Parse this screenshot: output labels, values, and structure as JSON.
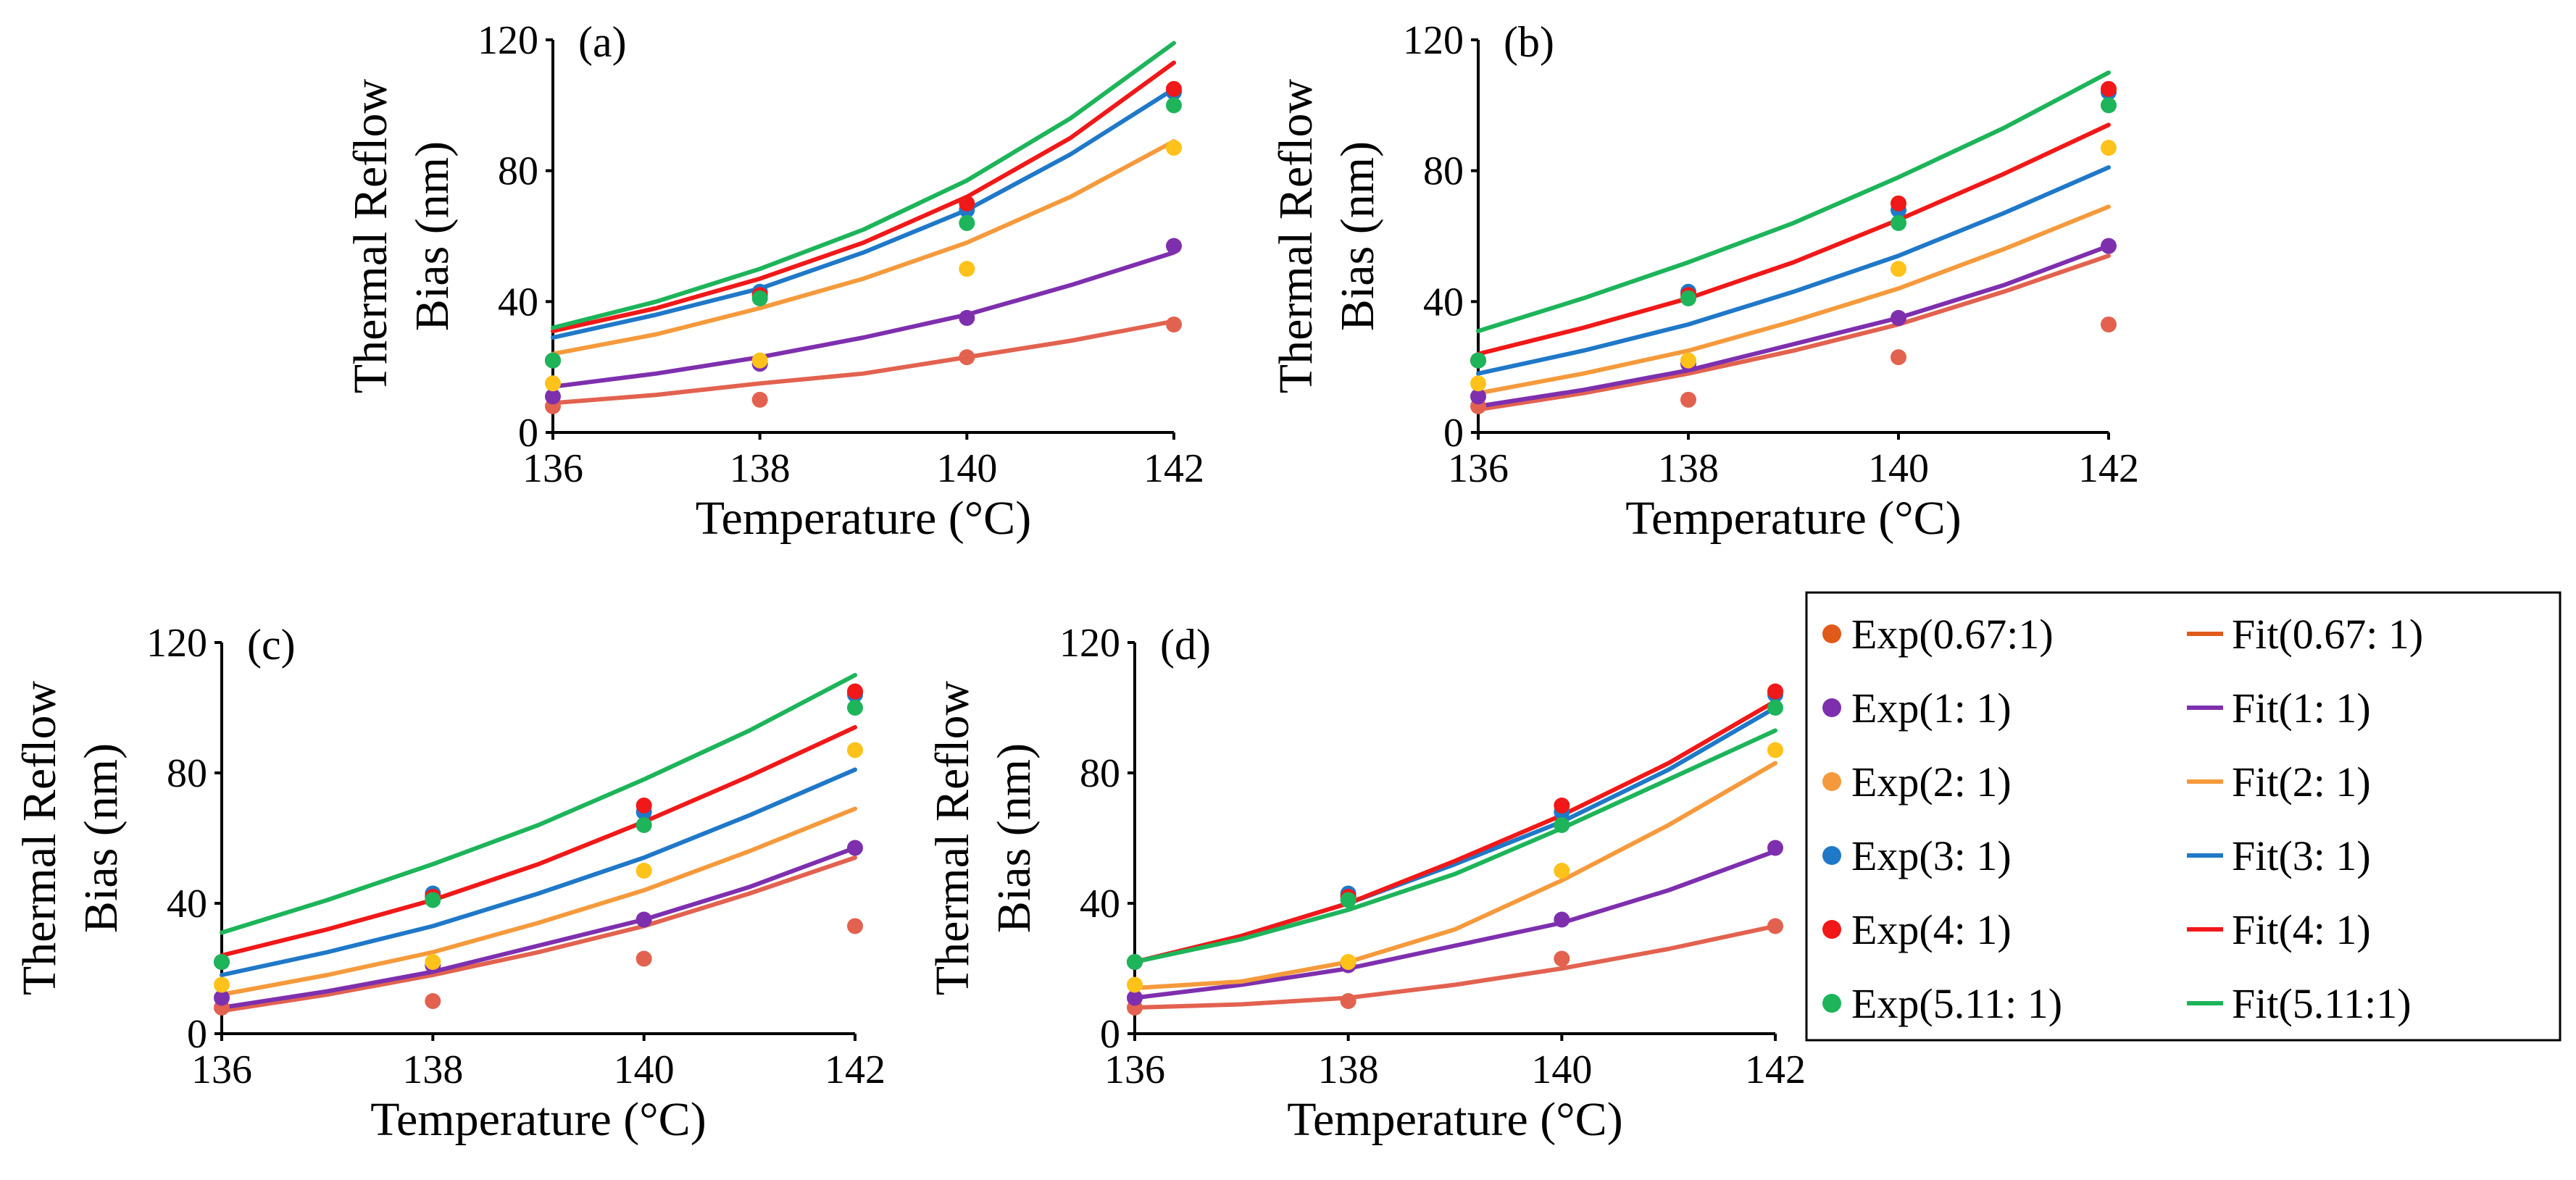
{
  "chart_data": [
    {
      "type": "scatter",
      "panel_label": "(a)",
      "xlabel": "Temperature (°C)",
      "ylabel": [
        "Thermal Reflow",
        "Bias (nm)"
      ],
      "xlim": [
        136,
        142
      ],
      "ylim": [
        0,
        120
      ],
      "xticks": [
        "136",
        "138",
        "140",
        "142"
      ],
      "yticks": [
        "0",
        "40",
        "80",
        "120"
      ],
      "exp_x": [
        136,
        138,
        140,
        142
      ],
      "fit_x": [
        136,
        137,
        138,
        139,
        140,
        141,
        142
      ],
      "series": [
        {
          "name": "Exp(0.67:1)",
          "fit_name": "Fit(0.67: 1)",
          "exp": [
            8,
            10,
            23,
            33
          ],
          "fit": [
            9,
            11.5,
            15,
            18,
            23,
            28,
            34
          ]
        },
        {
          "name": "Exp(1: 1)",
          "fit_name": "Fit(1: 1)",
          "exp": [
            11,
            21,
            35,
            57
          ],
          "fit": [
            14,
            18,
            23,
            29,
            36,
            45,
            55
          ]
        },
        {
          "name": "Exp(2: 1)",
          "fit_name": "Fit(2: 1)",
          "exp": [
            15,
            22,
            50,
            87
          ],
          "fit": [
            24,
            30,
            38,
            47,
            58,
            72,
            89
          ]
        },
        {
          "name": "Exp(3: 1)",
          "fit_name": "Fit(3: 1)",
          "exp": [
            22,
            43,
            68,
            104
          ],
          "fit": [
            29,
            36,
            44,
            55,
            68,
            85,
            105
          ]
        },
        {
          "name": "Exp(4: 1)",
          "fit_name": "Fit(4: 1)",
          "exp": [
            22,
            42,
            70,
            105
          ],
          "fit": [
            31,
            38,
            47,
            58,
            72,
            90,
            113
          ]
        },
        {
          "name": "Exp(5.11: 1)",
          "fit_name": "Fit(5.11:1)",
          "exp": [
            22,
            41,
            64,
            100
          ],
          "fit": [
            32,
            40,
            50,
            62,
            77,
            96,
            119
          ]
        }
      ]
    },
    {
      "type": "scatter",
      "panel_label": "(b)",
      "xlabel": "Temperature (°C)",
      "ylabel": [
        "Thermal Reflow",
        "Bias (nm)"
      ],
      "xlim": [
        136,
        142
      ],
      "ylim": [
        0,
        120
      ],
      "xticks": [
        "136",
        "138",
        "140",
        "142"
      ],
      "yticks": [
        "0",
        "40",
        "80",
        "120"
      ],
      "exp_x": [
        136,
        138,
        140,
        142
      ],
      "fit_x": [
        136,
        137,
        138,
        139,
        140,
        141,
        142
      ],
      "series": [
        {
          "name": "Exp(0.67:1)",
          "fit_name": "Fit(0.67: 1)",
          "exp": [
            8,
            10,
            23,
            33
          ],
          "fit": [
            7,
            12,
            18,
            25,
            33,
            43,
            54
          ]
        },
        {
          "name": "Exp(1: 1)",
          "fit_name": "Fit(1: 1)",
          "exp": [
            11,
            21,
            35,
            57
          ],
          "fit": [
            8,
            13,
            19,
            27,
            35,
            45,
            57
          ]
        },
        {
          "name": "Exp(2: 1)",
          "fit_name": "Fit(2: 1)",
          "exp": [
            15,
            22,
            50,
            87
          ],
          "fit": [
            12,
            18,
            25,
            34,
            44,
            56,
            69
          ]
        },
        {
          "name": "Exp(3: 1)",
          "fit_name": "Fit(3: 1)",
          "exp": [
            22,
            43,
            68,
            104
          ],
          "fit": [
            18,
            25,
            33,
            43,
            54,
            67,
            81
          ]
        },
        {
          "name": "Exp(4: 1)",
          "fit_name": "Fit(4: 1)",
          "exp": [
            22,
            42,
            70,
            105
          ],
          "fit": [
            24,
            32,
            41,
            52,
            65,
            79,
            94
          ]
        },
        {
          "name": "Exp(5.11: 1)",
          "fit_name": "Fit(5.11:1)",
          "exp": [
            22,
            41,
            64,
            100
          ],
          "fit": [
            31,
            41,
            52,
            64,
            78,
            93,
            110
          ]
        }
      ]
    },
    {
      "type": "scatter",
      "panel_label": "(c)",
      "xlabel": "Temperature (°C)",
      "ylabel": [
        "Thermal Reflow",
        "Bias (nm)"
      ],
      "xlim": [
        136,
        142
      ],
      "ylim": [
        0,
        120
      ],
      "xticks": [
        "136",
        "138",
        "140",
        "142"
      ],
      "yticks": [
        "0",
        "40",
        "80",
        "120"
      ],
      "exp_x": [
        136,
        138,
        140,
        142
      ],
      "fit_x": [
        136,
        137,
        138,
        139,
        140,
        141,
        142
      ],
      "series": [
        {
          "name": "Exp(0.67:1)",
          "fit_name": "Fit(0.67: 1)",
          "exp": [
            8,
            10,
            23,
            33
          ],
          "fit": [
            7,
            12,
            18,
            25,
            33,
            43,
            54
          ]
        },
        {
          "name": "Exp(1: 1)",
          "fit_name": "Fit(1: 1)",
          "exp": [
            11,
            21,
            35,
            57
          ],
          "fit": [
            8,
            13,
            19,
            27,
            35,
            45,
            57
          ]
        },
        {
          "name": "Exp(2: 1)",
          "fit_name": "Fit(2: 1)",
          "exp": [
            15,
            22,
            50,
            87
          ],
          "fit": [
            12,
            18,
            25,
            34,
            44,
            56,
            69
          ]
        },
        {
          "name": "Exp(3: 1)",
          "fit_name": "Fit(3: 1)",
          "exp": [
            22,
            43,
            68,
            104
          ],
          "fit": [
            18,
            25,
            33,
            43,
            54,
            67,
            81
          ]
        },
        {
          "name": "Exp(4: 1)",
          "fit_name": "Fit(4: 1)",
          "exp": [
            22,
            42,
            70,
            105
          ],
          "fit": [
            24,
            32,
            41,
            52,
            65,
            79,
            94
          ]
        },
        {
          "name": "Exp(5.11: 1)",
          "fit_name": "Fit(5.11:1)",
          "exp": [
            22,
            41,
            64,
            100
          ],
          "fit": [
            31,
            41,
            52,
            64,
            78,
            93,
            110
          ]
        }
      ]
    },
    {
      "type": "scatter",
      "panel_label": "(d)",
      "xlabel": "Temperature (°C)",
      "ylabel": [
        "Thermal Reflow",
        "Bias (nm)"
      ],
      "xlim": [
        136,
        142
      ],
      "ylim": [
        0,
        120
      ],
      "xticks": [
        "136",
        "138",
        "140",
        "142"
      ],
      "yticks": [
        "0",
        "40",
        "80",
        "120"
      ],
      "exp_x": [
        136,
        138,
        140,
        142
      ],
      "fit_x": [
        136,
        137,
        138,
        139,
        140,
        141,
        142
      ],
      "series": [
        {
          "name": "Exp(0.67:1)",
          "fit_name": "Fit(0.67: 1)",
          "exp": [
            8,
            10,
            23,
            33
          ],
          "fit": [
            8,
            9,
            11,
            15,
            20,
            26,
            33
          ]
        },
        {
          "name": "Exp(1: 1)",
          "fit_name": "Fit(1: 1)",
          "exp": [
            11,
            21,
            35,
            57
          ],
          "fit": [
            11,
            15,
            20,
            27,
            34,
            44,
            56
          ]
        },
        {
          "name": "Exp(2: 1)",
          "fit_name": "Fit(2: 1)",
          "exp": [
            15,
            22,
            50,
            87
          ],
          "fit": [
            14,
            16,
            22,
            32,
            47,
            64,
            83
          ]
        },
        {
          "name": "Exp(3: 1)",
          "fit_name": "Fit(3: 1)",
          "exp": [
            22,
            43,
            68,
            104
          ],
          "fit": [
            22,
            30,
            40,
            52,
            65,
            81,
            100
          ]
        },
        {
          "name": "Exp(4: 1)",
          "fit_name": "Fit(4: 1)",
          "exp": [
            22,
            42,
            70,
            105
          ],
          "fit": [
            22,
            30,
            40,
            53,
            67,
            83,
            102
          ]
        },
        {
          "name": "Exp(5.11: 1)",
          "fit_name": "Fit(5.11:1)",
          "exp": [
            22,
            41,
            64,
            100
          ],
          "fit": [
            22,
            29,
            38,
            49,
            63,
            78,
            93
          ]
        }
      ]
    }
  ],
  "legend": {
    "placement": "right",
    "items": [
      {
        "label": "Exp(0.67:1)",
        "kind": "marker",
        "color": "#E05A1A"
      },
      {
        "label": "Fit(0.67: 1)",
        "kind": "line",
        "color": "#E05A1A"
      },
      {
        "label": "Exp(1: 1)",
        "kind": "marker",
        "color": "#7E2FAE"
      },
      {
        "label": "Fit(1: 1)",
        "kind": "line",
        "color": "#7E2FAE"
      },
      {
        "label": "Exp(2: 1)",
        "kind": "marker",
        "color": "#F59A3C"
      },
      {
        "label": "Fit(2: 1)",
        "kind": "line",
        "color": "#F59A3C"
      },
      {
        "label": "Exp(3: 1)",
        "kind": "marker",
        "color": "#1F78C8"
      },
      {
        "label": "Fit(3: 1)",
        "kind": "line",
        "color": "#1F78C8"
      },
      {
        "label": "Exp(4: 1)",
        "kind": "marker",
        "color": "#F01818"
      },
      {
        "label": "Fit(4: 1)",
        "kind": "line",
        "color": "#F01818"
      },
      {
        "label": "Exp(5.11: 1)",
        "kind": "marker",
        "color": "#1DB45A"
      },
      {
        "label": "Fit(5.11:1)",
        "kind": "line",
        "color": "#1DB45A"
      }
    ]
  },
  "colors": {
    "fit": [
      "#E2624F",
      "#7E2FAE",
      "#F59A3C",
      "#1F78C8",
      "#F01818",
      "#1DB45A"
    ],
    "exp": [
      "#E2624F",
      "#7E2FAE",
      "#FFC21A",
      "#1F78C8",
      "#F01818",
      "#1DB45A"
    ]
  }
}
